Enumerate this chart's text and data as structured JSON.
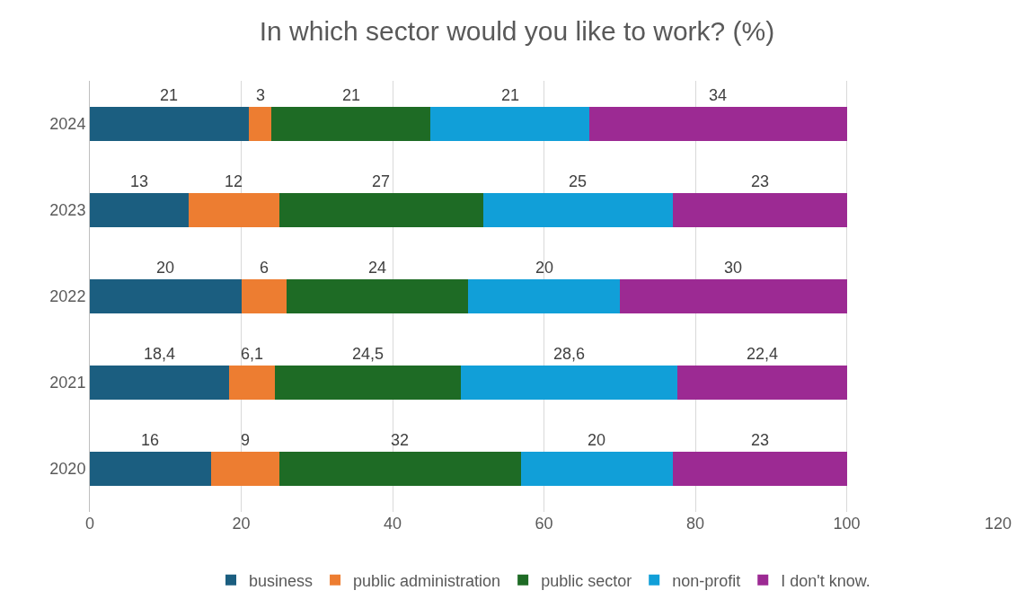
{
  "chart_data": {
    "type": "bar",
    "orientation": "horizontal",
    "stacked": true,
    "title": "In which sector would you like to work? (%)",
    "categories": [
      "2024",
      "2023",
      "2022",
      "2021",
      "2020"
    ],
    "series": [
      {
        "name": "business",
        "color": "#1b5e80",
        "values": [
          21,
          13,
          20,
          18.4,
          16
        ],
        "value_labels": [
          "21",
          "13",
          "20",
          "18,4",
          "16"
        ]
      },
      {
        "name": "public administration",
        "color": "#ed7d31",
        "values": [
          3,
          12,
          6,
          6.1,
          9
        ],
        "value_labels": [
          "3",
          "12",
          "6",
          "6,1",
          "9"
        ]
      },
      {
        "name": "public sector",
        "color": "#1e6b25",
        "values": [
          21,
          27,
          24,
          24.5,
          32
        ],
        "value_labels": [
          "21",
          "27",
          "24",
          "24,5",
          "32"
        ]
      },
      {
        "name": "non-profit",
        "color": "#119fd8",
        "values": [
          21,
          25,
          20,
          28.6,
          20
        ],
        "value_labels": [
          "21",
          "25",
          "20",
          "28,6",
          "20"
        ]
      },
      {
        "name": "I don't know.",
        "color": "#9c2a93",
        "values": [
          34,
          23,
          30,
          22.4,
          23
        ],
        "value_labels": [
          "34",
          "23",
          "30",
          "22,4",
          "23"
        ]
      }
    ],
    "xlim": [
      0,
      120
    ],
    "xticks": [
      0,
      20,
      40,
      60,
      80,
      100,
      120
    ],
    "grid": "x",
    "legend": "bottom"
  }
}
